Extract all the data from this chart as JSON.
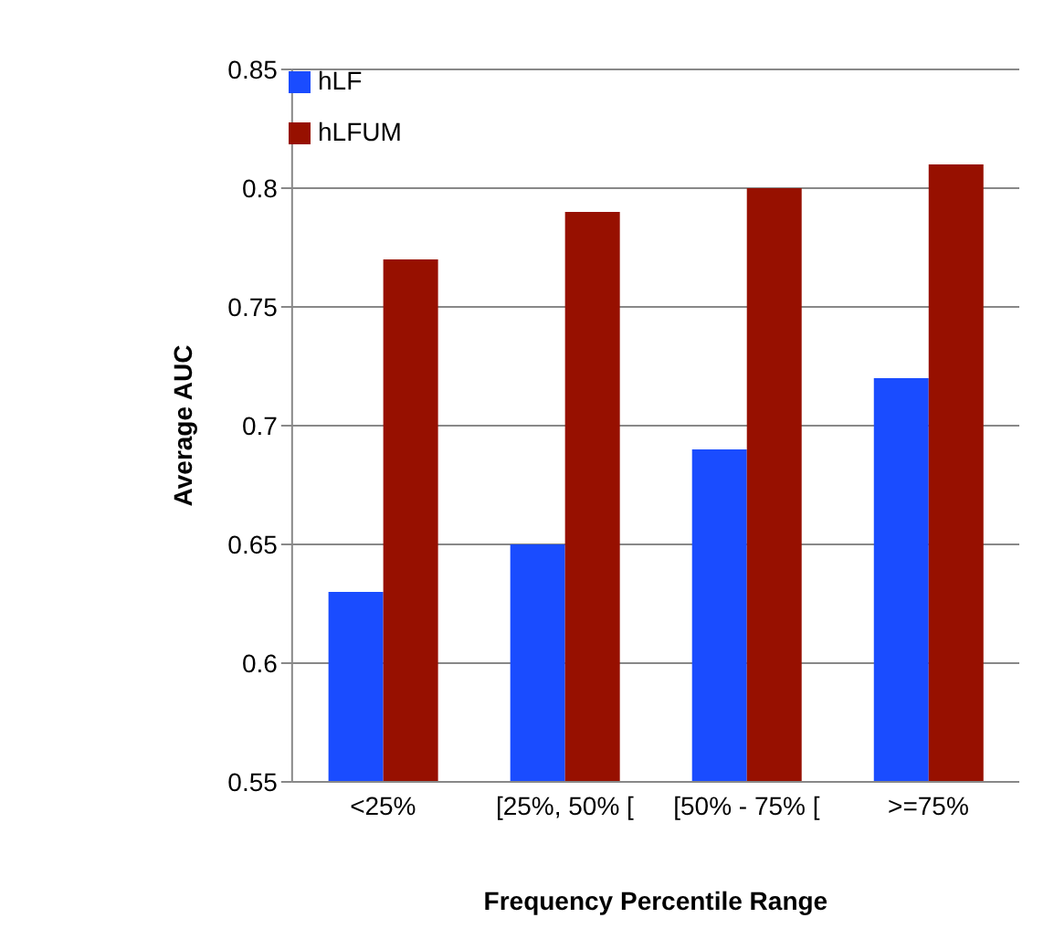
{
  "chart_data": {
    "type": "bar",
    "xlabel": "Frequency Percentile Range",
    "ylabel": "Average AUC",
    "categories": [
      "<25%",
      "[25%, 50% [",
      "[50% - 75% [",
      ">=75%"
    ],
    "series": [
      {
        "name": "hLF",
        "color": "#1a4cff",
        "values": [
          0.63,
          0.65,
          0.69,
          0.72
        ]
      },
      {
        "name": "hLFUM",
        "color": "#971000",
        "values": [
          0.77,
          0.79,
          0.8,
          0.81
        ]
      }
    ],
    "ylim": [
      0.55,
      0.85
    ],
    "yticks": [
      0.55,
      0.6,
      0.65,
      0.7,
      0.75,
      0.8,
      0.85
    ],
    "grid": "y",
    "legend": "top left"
  }
}
